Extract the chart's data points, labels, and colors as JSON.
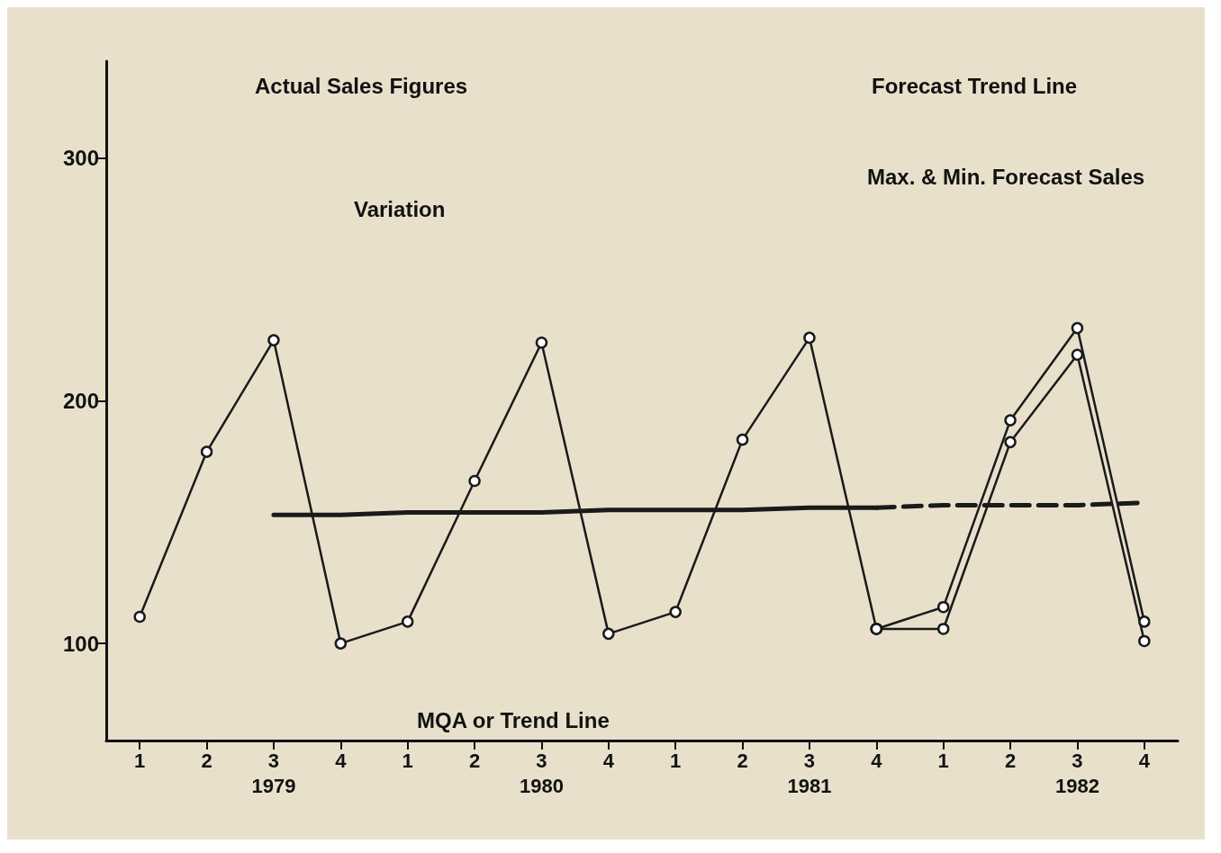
{
  "chart_data": {
    "type": "line",
    "categories": [
      "1",
      "2",
      "3\n1979",
      "4",
      "1",
      "2",
      "3\n1980",
      "4",
      "1",
      "2",
      "3\n1981",
      "4",
      "1",
      "2",
      "3\n1982",
      "4"
    ],
    "series": [
      {
        "color": "#1a1a1a",
        "values": [
          111,
          179,
          225,
          100,
          109,
          167,
          224,
          104,
          113,
          184,
          226,
          106,
          null,
          null,
          null,
          null
        ],
        "marker": "circle",
        "line_style": "solid"
      },
      {
        "color": "#1a1a1a",
        "values": [
          null,
          null,
          153,
          153,
          154,
          154,
          154,
          155,
          155,
          155,
          156,
          156,
          null,
          null,
          null,
          null
        ],
        "marker": "none",
        "line_style": "solid"
      },
      {
        "color": "#1a1a1a",
        "values": [
          null,
          null,
          null,
          null,
          null,
          null,
          null,
          null,
          null,
          null,
          null,
          156,
          157,
          157,
          157,
          158
        ],
        "marker": "none",
        "line_style": "dashed"
      },
      {
        "color": "#1a1a1a",
        "values": [
          null,
          null,
          null,
          null,
          null,
          null,
          null,
          null,
          null,
          null,
          null,
          106,
          115,
          192,
          230,
          109
        ],
        "marker": "circle",
        "line_style": "solid"
      },
      {
        "color": "#1a1a1a",
        "values": [
          null,
          null,
          null,
          null,
          null,
          null,
          null,
          null,
          null,
          null,
          null,
          106,
          106,
          183,
          219,
          101
        ],
        "marker": "circle",
        "line_style": "solid"
      }
    ],
    "ylim": [
      60,
      340
    ],
    "yticks": [
      100,
      200,
      300
    ],
    "grid": false,
    "annotations": [
      "Actual Sales Figures",
      "Variation",
      "Forecast Trend Line",
      "Max. & Min. Forecast Sales",
      "MQA or Trend Line"
    ]
  }
}
